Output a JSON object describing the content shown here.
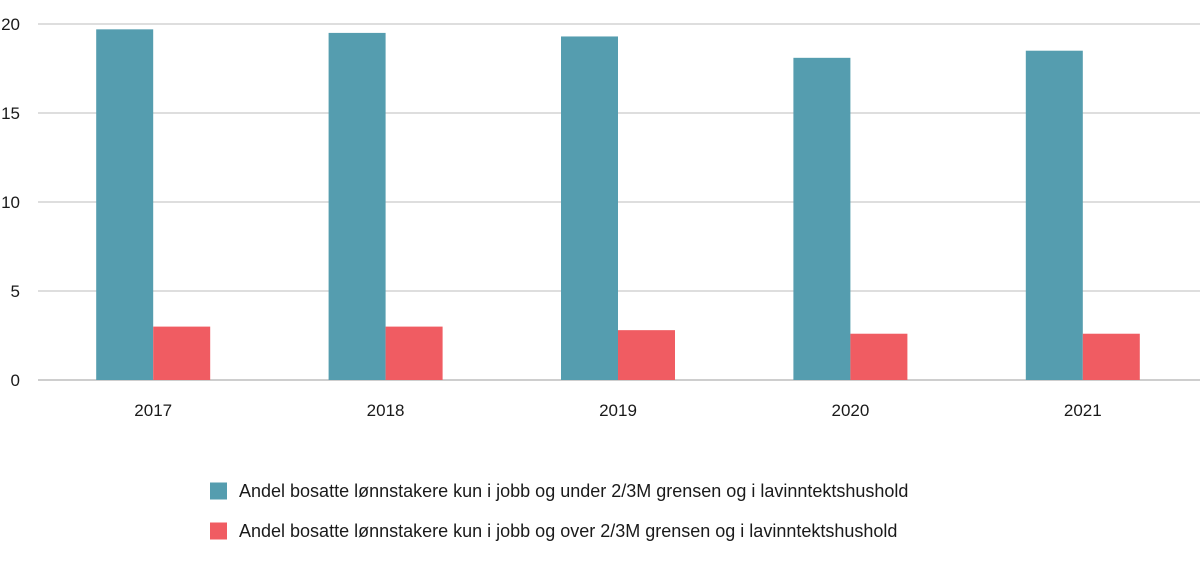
{
  "chart_data": {
    "type": "bar",
    "title": "",
    "xlabel": "",
    "ylabel": "",
    "categories": [
      "2017",
      "2018",
      "2019",
      "2020",
      "2021"
    ],
    "ylim": [
      0,
      20
    ],
    "yticks": [
      0,
      5,
      10,
      15,
      20
    ],
    "grid": true,
    "legend_position": "bottom-center",
    "series": [
      {
        "name": "Andel bosatte lønnstakere kun i jobb og under 2/3M grensen og i lavinntektshushold",
        "color": "#559daf",
        "values": [
          19.7,
          19.5,
          19.3,
          18.1,
          18.5
        ]
      },
      {
        "name": "Andel bosatte lønnstakere kun i jobb og over 2/3M grensen og i lavinntektshushold",
        "color": "#f05c62",
        "values": [
          3.0,
          3.0,
          2.8,
          2.6,
          2.6
        ]
      }
    ]
  }
}
